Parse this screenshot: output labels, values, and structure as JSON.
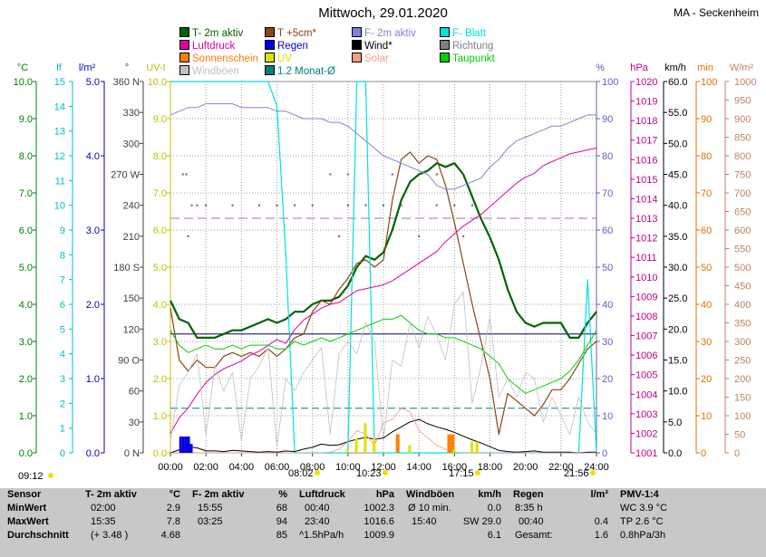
{
  "title": "Mittwoch, 29.01.2020",
  "station": "MA - Seckenheim",
  "legend": [
    {
      "label": "T- 2m aktiv",
      "color": "#006400"
    },
    {
      "label": "T +5cm*",
      "color": "#8b4513"
    },
    {
      "label": "F- 2m aktiv",
      "color": "#8080e0"
    },
    {
      "label": "F- Blatt",
      "color": "#00e0e0"
    },
    {
      "label": "Luftdruck",
      "color": "#e000a0"
    },
    {
      "label": "Regen",
      "color": "#0000e0"
    },
    {
      "label": "Wind*",
      "color": "#000000"
    },
    {
      "label": "Richtung",
      "color": "#808080"
    },
    {
      "label": "Sonnenschein",
      "color": "#ff8000"
    },
    {
      "label": "UV",
      "color": "#e0e000"
    },
    {
      "label": "Solar",
      "color": "#f0a080"
    },
    {
      "label": "Taupunkt",
      "color": "#00d000"
    },
    {
      "label": "Windböen",
      "color": "#c0c0c0"
    },
    {
      "label": "1.2 Monat-Ø",
      "color": "#008080"
    }
  ],
  "axes_units": {
    "temp": "°C",
    "lf": "lf",
    "rain": "l/m²",
    "dir": "°",
    "uv": "UV-I",
    "hum": "%",
    "press": "hPa",
    "wind": "km/h",
    "min": "min",
    "solar": "W/m²"
  },
  "chart_data": {
    "type": "line",
    "xlabel": "",
    "x_ticks": [
      "00:00",
      "02:00",
      "04:00",
      "06:00",
      "08:00",
      "10:00",
      "12:00",
      "14:00",
      "16:00",
      "18:00",
      "20:00",
      "22:00",
      "24:00"
    ],
    "time_hours": [
      0,
      0.5,
      1,
      1.5,
      2,
      2.5,
      3,
      3.5,
      4,
      4.5,
      5,
      5.5,
      6,
      6.5,
      7,
      7.5,
      8,
      8.5,
      9,
      9.5,
      10,
      10.5,
      11,
      11.5,
      12,
      12.5,
      13,
      13.5,
      14,
      14.5,
      15,
      15.5,
      16,
      16.5,
      17,
      17.5,
      18,
      18.5,
      19,
      19.5,
      20,
      20.5,
      21,
      21.5,
      22,
      22.5,
      23,
      23.5,
      24
    ],
    "y_axes": {
      "temp": {
        "ticks": [
          "0.0",
          "1.0",
          "2.0",
          "3.0",
          "4.0",
          "5.0",
          "6.0",
          "7.0",
          "8.0",
          "9.0",
          "10.0"
        ],
        "range": [
          0,
          10
        ]
      },
      "lf": {
        "ticks": [
          "0",
          "1",
          "2",
          "3",
          "4",
          "5",
          "6",
          "7",
          "8",
          "9",
          "10",
          "11",
          "12",
          "13",
          "14",
          "15"
        ],
        "range": [
          0,
          15
        ]
      },
      "rain": {
        "ticks": [
          "0.0",
          "1.0",
          "2.0",
          "3.0",
          "4.0",
          "5.0"
        ],
        "range": [
          0,
          5
        ]
      },
      "dir": {
        "ticks": [
          "0 N",
          "30",
          "60",
          "90 O",
          "120",
          "150",
          "180 S",
          "210",
          "240",
          "270 W",
          "300",
          "330",
          "360 N"
        ],
        "range": [
          0,
          360
        ]
      },
      "uv": {
        "ticks": [
          "0.0",
          "1.0",
          "2.0",
          "3.0",
          "4.0",
          "5.0",
          "6.0",
          "7.0",
          "8.0",
          "9.0",
          "10.0"
        ],
        "range": [
          0,
          10
        ]
      },
      "hum": {
        "ticks": [
          "0",
          "10",
          "20",
          "30",
          "40",
          "50",
          "60",
          "70",
          "80",
          "90",
          "100"
        ],
        "range": [
          0,
          100
        ]
      },
      "press": {
        "ticks": [
          "1001",
          "1002",
          "1003",
          "1004",
          "1005",
          "1006",
          "1007",
          "1008",
          "1009",
          "1010",
          "1011",
          "1012",
          "1013",
          "1014",
          "1015",
          "1016",
          "1017",
          "1018",
          "1019",
          "1020"
        ],
        "range": [
          1001,
          1020
        ]
      },
      "wind": {
        "ticks": [
          "0.0",
          "5.0",
          "10.0",
          "15.0",
          "20.0",
          "25.0",
          "30.0",
          "35.0",
          "40.0",
          "45.0",
          "50.0",
          "55.0",
          "60.0"
        ],
        "range": [
          0,
          60
        ]
      },
      "min": {
        "ticks": [
          "0",
          "10",
          "20",
          "30",
          "40",
          "50",
          "60",
          "70",
          "80",
          "90",
          "100"
        ],
        "range": [
          0,
          100
        ]
      },
      "solar": {
        "ticks": [
          "0",
          "50",
          "100",
          "150",
          "200",
          "250",
          "300",
          "350",
          "400",
          "450",
          "500",
          "550",
          "600",
          "650",
          "700",
          "750",
          "800",
          "850",
          "900",
          "950",
          "1000"
        ],
        "range": [
          0,
          1000
        ]
      }
    },
    "series": [
      {
        "name": "T- 2m aktiv",
        "axis": "temp",
        "color": "#006400",
        "width": 2.2,
        "values": [
          4.1,
          3.6,
          3.5,
          3.1,
          3.1,
          3.1,
          3.2,
          3.3,
          3.3,
          3.4,
          3.5,
          3.6,
          3.5,
          3.6,
          3.8,
          3.8,
          4.0,
          4.1,
          4.1,
          4.2,
          4.5,
          5.0,
          5.3,
          5.2,
          5.4,
          6.0,
          6.8,
          7.3,
          7.5,
          7.6,
          7.8,
          7.7,
          7.8,
          7.5,
          6.9,
          6.3,
          5.8,
          5.2,
          4.4,
          3.8,
          3.5,
          3.4,
          3.5,
          3.5,
          3.5,
          3.1,
          3.1,
          3.5,
          3.8
        ]
      },
      {
        "name": "T +5cm*",
        "axis": "temp",
        "color": "#8b4513",
        "width": 1.2,
        "values": [
          3.9,
          2.5,
          2.2,
          2.5,
          2.3,
          2.3,
          2.6,
          2.7,
          2.6,
          2.7,
          2.6,
          2.8,
          2.6,
          2.8,
          3.1,
          3.2,
          3.8,
          4.1,
          4.0,
          4.4,
          4.7,
          5.1,
          5.2,
          5.0,
          5.2,
          6.8,
          7.9,
          8.1,
          7.8,
          8.0,
          7.9,
          7.2,
          6.2,
          5.1,
          4.0,
          3.0,
          2.0,
          0.5,
          1.6,
          1.4,
          1.2,
          1.0,
          1.3,
          1.7,
          1.7,
          2.0,
          2.4,
          2.8,
          3.0
        ]
      },
      {
        "name": "F- 2m aktiv",
        "axis": "hum",
        "color": "#8080e0",
        "width": 1.0,
        "values": [
          91,
          92,
          93,
          93,
          94,
          94,
          94,
          94,
          93,
          93,
          93,
          93,
          92,
          92,
          91,
          90,
          90,
          90,
          89,
          89,
          88,
          86,
          84,
          82,
          80,
          79,
          78,
          77,
          76,
          75,
          72,
          71,
          71,
          72,
          73,
          74,
          77,
          79,
          82,
          84,
          85,
          86,
          87,
          88,
          88,
          89,
          90,
          91,
          91
        ]
      },
      {
        "name": "F- Blatt",
        "axis": "lf",
        "color": "#00e0e0",
        "width": 1.2,
        "values": [
          15,
          15,
          15,
          15,
          15,
          15,
          15,
          15,
          15,
          15,
          15,
          15,
          14,
          8,
          0,
          0,
          0,
          0,
          0,
          0,
          0,
          15,
          15,
          0,
          0,
          0,
          0,
          0,
          0,
          0,
          0,
          0,
          0,
          0,
          0,
          0,
          0,
          0,
          0,
          0,
          0,
          0,
          0,
          0,
          0,
          0,
          0,
          7,
          0
        ]
      },
      {
        "name": "Luftdruck",
        "axis": "press",
        "color": "#e000a0",
        "width": 1.0,
        "values": [
          1002.0,
          1002.8,
          1003.3,
          1004.0,
          1004.6,
          1005.0,
          1005.3,
          1005.5,
          1005.7,
          1006.0,
          1006.2,
          1006.5,
          1006.8,
          1006.6,
          1007.3,
          1007.8,
          1008.1,
          1008.4,
          1008.6,
          1008.7,
          1009.0,
          1009.3,
          1009.4,
          1009.5,
          1009.6,
          1009.8,
          1010.1,
          1010.4,
          1010.7,
          1011.0,
          1011.3,
          1011.8,
          1012.2,
          1012.6,
          1012.9,
          1013.2,
          1013.6,
          1014.0,
          1014.4,
          1014.8,
          1015.1,
          1015.3,
          1015.7,
          1015.9,
          1016.1,
          1016.3,
          1016.4,
          1016.5,
          1016.6
        ]
      },
      {
        "name": "Taupunkt",
        "axis": "temp",
        "color": "#00d000",
        "width": 1.0,
        "values": [
          3.3,
          2.9,
          2.7,
          2.8,
          2.9,
          2.8,
          2.8,
          2.9,
          2.8,
          2.9,
          2.9,
          2.9,
          2.8,
          2.8,
          3.0,
          2.9,
          3.0,
          3.1,
          3.0,
          3.1,
          3.2,
          3.3,
          3.4,
          3.5,
          3.6,
          3.6,
          3.7,
          3.5,
          3.3,
          3.2,
          3.2,
          3.1,
          3.1,
          3.0,
          2.9,
          2.8,
          2.6,
          2.4,
          2.0,
          1.8,
          1.6,
          1.7,
          1.8,
          1.9,
          2.0,
          2.2,
          2.5,
          2.9,
          3.3
        ]
      },
      {
        "name": "Windböen",
        "axis": "wind",
        "color": "#c0c0c0",
        "width": 0.8,
        "values": [
          2,
          11,
          13,
          16,
          3,
          14,
          10,
          13,
          2,
          12,
          14,
          17,
          1,
          12,
          10,
          13,
          15,
          17,
          3,
          16,
          18,
          16,
          21,
          18,
          2,
          15,
          14,
          21,
          17,
          22,
          19,
          15,
          24,
          26,
          8,
          14,
          22,
          9,
          12,
          9,
          13,
          12,
          5,
          9,
          6,
          3,
          9,
          5,
          3
        ]
      },
      {
        "name": "Wind*",
        "axis": "wind",
        "color": "#000000",
        "width": 1.0,
        "values": [
          0,
          0.5,
          1.0,
          0.8,
          0.3,
          0.3,
          0.2,
          0.4,
          0.3,
          0.2,
          0.1,
          0.2,
          0.1,
          0.3,
          0.2,
          0.6,
          0.9,
          1.4,
          1.2,
          1.3,
          1.8,
          2.2,
          2.5,
          2.2,
          2.4,
          3.4,
          4.2,
          5.0,
          5.4,
          4.7,
          4.2,
          3.8,
          3.3,
          2.7,
          2.1,
          1.6,
          1.0,
          0.4,
          0.2,
          0.1,
          0.2,
          0.3,
          0.1,
          0.1,
          0.1,
          0.1,
          0.0,
          0.1,
          0.1
        ]
      },
      {
        "name": "Solar",
        "axis": "solar",
        "color": "#f0a080",
        "width": 0.8,
        "values": [
          0,
          0,
          0,
          0,
          0,
          0,
          0,
          0,
          0,
          0,
          0,
          0,
          0,
          0,
          0,
          0,
          0,
          0,
          2,
          10,
          30,
          60,
          50,
          20,
          80,
          90,
          120,
          110,
          60,
          40,
          20,
          10,
          2,
          0,
          0,
          0,
          0,
          0,
          0,
          0,
          0,
          0,
          0,
          0,
          0,
          0,
          0,
          0,
          0
        ]
      }
    ],
    "reference_lines": [
      {
        "name": "1.2 Monat-Ø",
        "axis": "temp",
        "value": 1.2,
        "color": "#008080"
      },
      {
        "axis": "press",
        "value": 1013.0,
        "color": "#c060c0"
      },
      {
        "axis": "temp",
        "value": 3.2,
        "color": "#000060"
      }
    ],
    "direction_points": [
      [
        0.7,
        270
      ],
      [
        0.9,
        270
      ],
      [
        1.2,
        240
      ],
      [
        1.5,
        240
      ],
      [
        2.0,
        240
      ],
      [
        3.5,
        240
      ],
      [
        5.0,
        240
      ],
      [
        6.0,
        240
      ],
      [
        7.0,
        240
      ],
      [
        8.0,
        240
      ],
      [
        10.0,
        240
      ],
      [
        11.0,
        240
      ],
      [
        12.0,
        240
      ],
      [
        13.0,
        240
      ],
      [
        15.0,
        240
      ],
      [
        16.0,
        240
      ],
      [
        17.0,
        240
      ],
      [
        9.0,
        270
      ],
      [
        10.0,
        270
      ],
      [
        12.5,
        270
      ],
      [
        15.0,
        270
      ],
      [
        1.0,
        210
      ],
      [
        9.5,
        210
      ],
      [
        14.0,
        210
      ],
      [
        16.5,
        210
      ]
    ],
    "rain_bars": [
      [
        0.6,
        0.22
      ],
      [
        0.75,
        0.22
      ],
      [
        0.9,
        0.22
      ],
      [
        1.05,
        0.22
      ],
      [
        1.2,
        0.12
      ]
    ],
    "sunshine_bars": [
      [
        12.8,
        5
      ],
      [
        15.7,
        5
      ],
      [
        15.9,
        5
      ]
    ],
    "uv_bars": [
      [
        10.0,
        0.1
      ],
      [
        10.5,
        0.4
      ],
      [
        11.0,
        0.8
      ],
      [
        11.5,
        0.4
      ],
      [
        13.5,
        0.2
      ],
      [
        16.0,
        0.1
      ],
      [
        17.0,
        0.3
      ],
      [
        17.3,
        0.3
      ]
    ]
  },
  "time_markers": [
    {
      "label": "09:12",
      "sym": "sunrise-icon"
    },
    {
      "label": "08:02",
      "sym": "sun-icon"
    },
    {
      "label": "10:23",
      "sym": "moonrise-icon"
    },
    {
      "label": "17:15",
      "sym": "sunset-icon"
    },
    {
      "label": "21:56",
      "sym": "moonset-icon"
    }
  ],
  "stats_table": {
    "sensor": {
      "header": "Sensor",
      "rows": [
        "MinWert",
        "MaxWert",
        "Durchschnitt"
      ]
    },
    "temp": {
      "header": "T- 2m aktiv",
      "unit": "°C",
      "rows": [
        [
          "02:00",
          "2.9"
        ],
        [
          "15:35",
          "7.8"
        ],
        [
          "(+ 3.48 )",
          "4.68"
        ]
      ]
    },
    "hum": {
      "header": "F- 2m aktiv",
      "unit": "%",
      "rows": [
        [
          "15:55",
          "68"
        ],
        [
          "03:25",
          "94"
        ],
        [
          "",
          "85"
        ]
      ]
    },
    "press": {
      "header": "Luftdruck",
      "unit": "hPa",
      "rows": [
        [
          "00:40",
          "1002.3"
        ],
        [
          "23:40",
          "1016.6"
        ],
        [
          "^1.5hPa/h",
          "1009.9"
        ]
      ]
    },
    "wind": {
      "header": "Windböen",
      "unit": "km/h",
      "rows": [
        [
          "Ø 10 min.",
          "0.0"
        ],
        [
          "15:40",
          "SW 29.0"
        ],
        [
          "",
          "6.1"
        ]
      ]
    },
    "rain": {
      "header": "Regen",
      "unit": "l/m²",
      "rows": [
        [
          "8:35 h",
          ""
        ],
        [
          "00:40",
          "0.4"
        ],
        [
          "Gesamt:",
          "1.6"
        ]
      ]
    },
    "pmv": {
      "header": "PMV-1:4",
      "rows": [
        "WC 3.9 °C",
        "TP 2.6 °C",
        "0.8hPa/3h"
      ]
    }
  }
}
